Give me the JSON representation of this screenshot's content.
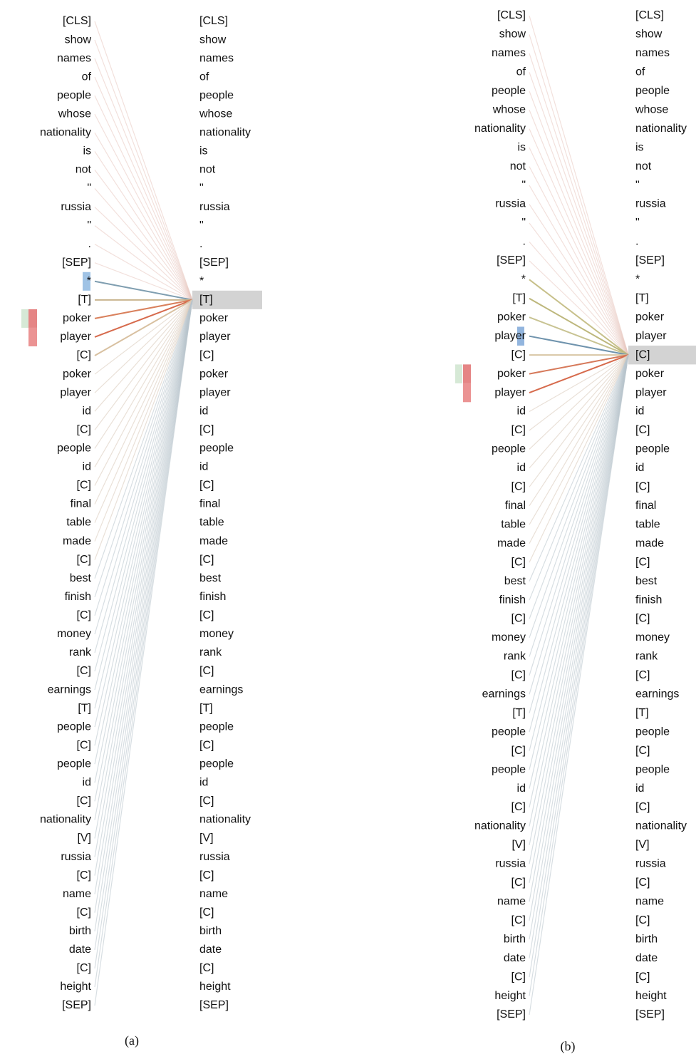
{
  "tokens": [
    "[CLS]",
    "show",
    "names",
    "of",
    "people",
    "whose",
    "nationality",
    "is",
    "not",
    "\"",
    "russia",
    "\"",
    ".",
    "[SEP]",
    "*",
    "[T]",
    "poker",
    "player",
    "[C]",
    "poker",
    "player",
    "id",
    "[C]",
    "people",
    "id",
    "[C]",
    "final",
    "table",
    "made",
    "[C]",
    "best",
    "finish",
    "[C]",
    "money",
    "rank",
    "[C]",
    "earnings",
    "[T]",
    "people",
    "[C]",
    "people",
    "id",
    "[C]",
    "nationality",
    "[V]",
    "russia",
    "[C]",
    "name",
    "[C]",
    "birth",
    "date",
    "[C]",
    "height",
    "[SEP]"
  ],
  "panels": [
    {
      "caption": "(a)"
    },
    {
      "caption": "(b)"
    }
  ]
}
